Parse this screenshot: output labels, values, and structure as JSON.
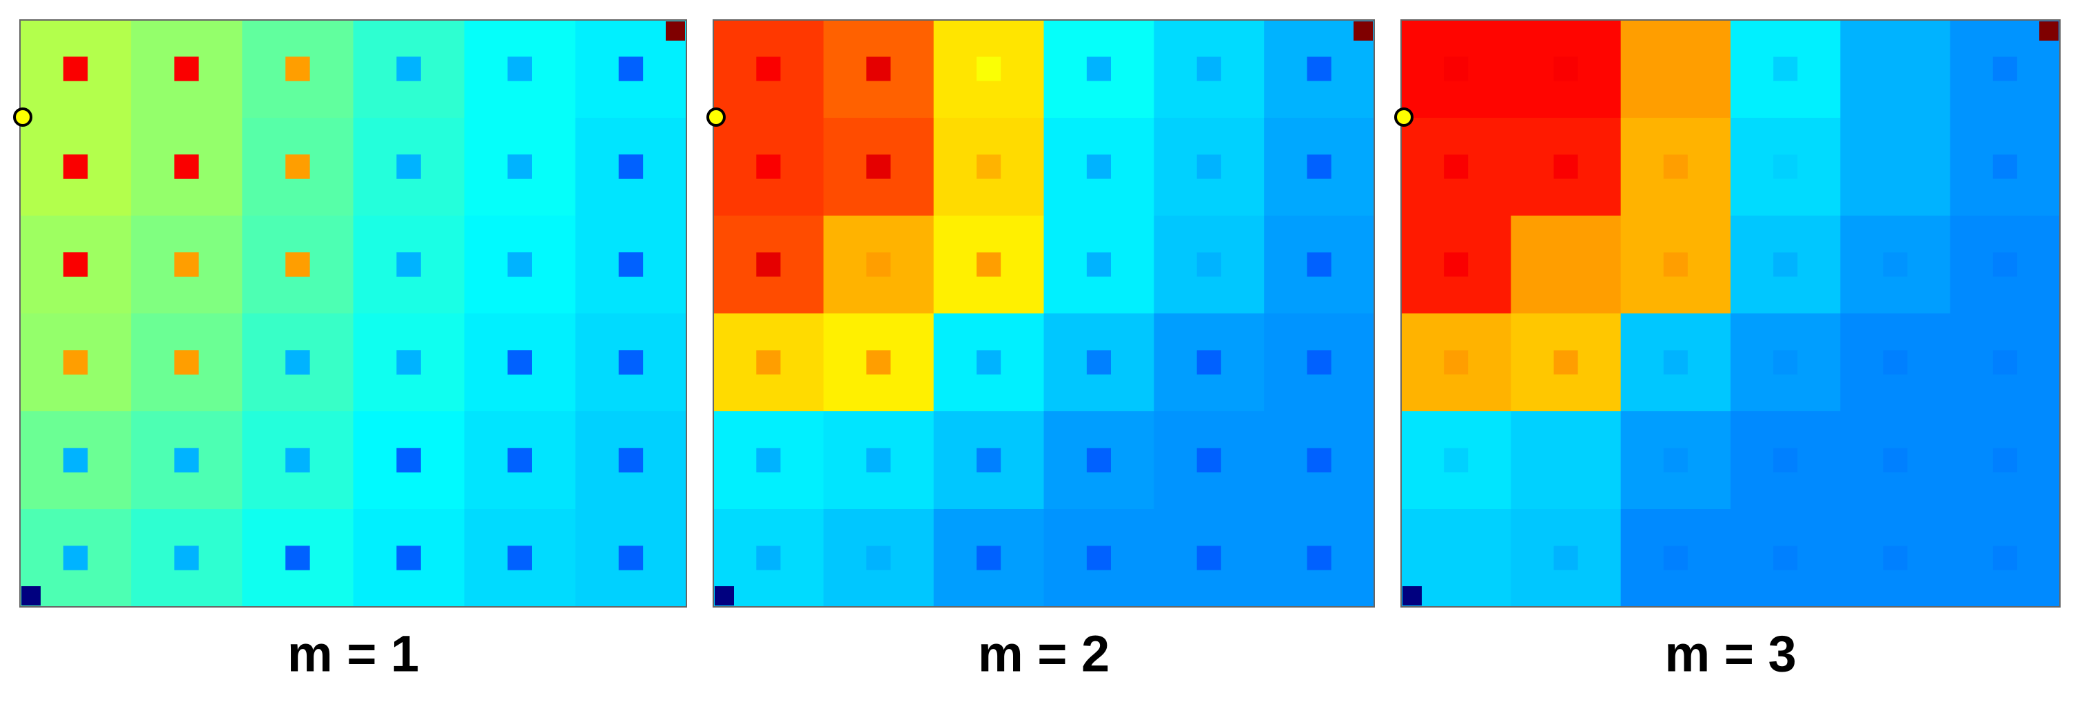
{
  "chart_data": [
    {
      "type": "heatmap",
      "title": "m = 1",
      "clim": [
        0,
        1
      ],
      "values": [
        [
          0.55,
          0.52,
          0.47,
          0.42,
          0.38,
          0.36
        ],
        [
          0.55,
          0.52,
          0.46,
          0.41,
          0.38,
          0.35
        ],
        [
          0.53,
          0.5,
          0.45,
          0.4,
          0.37,
          0.35
        ],
        [
          0.52,
          0.48,
          0.43,
          0.39,
          0.36,
          0.34
        ],
        [
          0.48,
          0.45,
          0.41,
          0.37,
          0.35,
          0.33
        ],
        [
          0.45,
          0.42,
          0.39,
          0.36,
          0.34,
          0.33
        ]
      ],
      "peaks": [
        [
          0.88,
          0.88,
          0.72,
          0.3,
          0.3,
          0.22
        ],
        [
          0.88,
          0.88,
          0.72,
          0.3,
          0.3,
          0.22
        ],
        [
          0.88,
          0.72,
          0.72,
          0.3,
          0.3,
          0.22
        ],
        [
          0.72,
          0.72,
          0.3,
          0.3,
          0.22,
          0.22
        ],
        [
          0.3,
          0.3,
          0.3,
          0.22,
          0.22,
          0.22
        ],
        [
          0.3,
          0.3,
          0.22,
          0.22,
          0.22,
          0.22
        ]
      ]
    },
    {
      "type": "heatmap",
      "title": "m = 2",
      "clim": [
        0,
        1
      ],
      "values": [
        [
          0.82,
          0.78,
          0.65,
          0.38,
          0.34,
          0.3
        ],
        [
          0.82,
          0.8,
          0.66,
          0.36,
          0.33,
          0.29
        ],
        [
          0.8,
          0.7,
          0.64,
          0.36,
          0.32,
          0.28
        ],
        [
          0.66,
          0.64,
          0.36,
          0.32,
          0.28,
          0.27
        ],
        [
          0.36,
          0.35,
          0.32,
          0.28,
          0.27,
          0.27
        ],
        [
          0.34,
          0.32,
          0.28,
          0.27,
          0.27,
          0.27
        ]
      ],
      "peaks": [
        [
          0.88,
          0.9,
          0.62,
          0.3,
          0.3,
          0.22
        ],
        [
          0.88,
          0.9,
          0.7,
          0.3,
          0.3,
          0.22
        ],
        [
          0.9,
          0.72,
          0.72,
          0.3,
          0.3,
          0.22
        ],
        [
          0.72,
          0.72,
          0.3,
          0.25,
          0.22,
          0.22
        ],
        [
          0.3,
          0.3,
          0.25,
          0.22,
          0.22,
          0.22
        ],
        [
          0.3,
          0.3,
          0.22,
          0.22,
          0.22,
          0.22
        ]
      ]
    },
    {
      "type": "heatmap",
      "title": "m = 3",
      "clim": [
        0,
        1
      ],
      "values": [
        [
          0.87,
          0.87,
          0.72,
          0.36,
          0.3,
          0.27
        ],
        [
          0.85,
          0.85,
          0.7,
          0.34,
          0.3,
          0.27
        ],
        [
          0.85,
          0.72,
          0.7,
          0.32,
          0.28,
          0.26
        ],
        [
          0.7,
          0.68,
          0.32,
          0.28,
          0.26,
          0.26
        ],
        [
          0.35,
          0.33,
          0.28,
          0.26,
          0.26,
          0.26
        ],
        [
          0.33,
          0.32,
          0.26,
          0.26,
          0.26,
          0.26
        ]
      ],
      "peaks": [
        [
          0.88,
          0.88,
          0.72,
          0.33,
          0.3,
          0.25
        ],
        [
          0.88,
          0.88,
          0.72,
          0.33,
          0.3,
          0.25
        ],
        [
          0.88,
          0.72,
          0.72,
          0.3,
          0.27,
          0.25
        ],
        [
          0.72,
          0.72,
          0.3,
          0.27,
          0.25,
          0.25
        ],
        [
          0.33,
          0.33,
          0.27,
          0.25,
          0.25,
          0.25
        ],
        [
          0.33,
          0.3,
          0.25,
          0.25,
          0.25,
          0.25
        ]
      ]
    }
  ]
}
